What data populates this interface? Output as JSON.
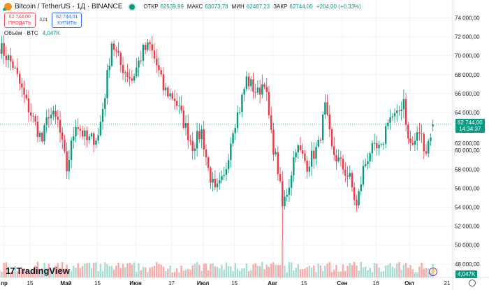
{
  "header": {
    "symbol": "Bitcoin / TetherUS · 1Д · BINANCE",
    "open_label": "ОТКР",
    "open": "62539,99",
    "high_label": "МАКС",
    "high": "63073,78",
    "low_label": "МИН",
    "low": "62487,23",
    "close_label": "ЗАКР",
    "close": "62744,00",
    "change": "+204,00 (+0,33%)"
  },
  "trade": {
    "sell_price": "62 744,00",
    "sell_label": "ПРОДАТЬ",
    "spread": "0,01",
    "buy_price": "62 744,01",
    "buy_label": "КУПИТЬ"
  },
  "volume_legend": {
    "label": "Объём · BTC",
    "value": "4,047K"
  },
  "price_label": {
    "price": "62 744,00",
    "countdown": "14:34:37"
  },
  "volume_label": "4,047K",
  "brand": "TradingView",
  "colors": {
    "up": "#089981",
    "down": "#f23645",
    "vol_up": "#a6dcd2",
    "vol_down": "#f9aaa8"
  },
  "chart_data": {
    "type": "candlestick",
    "title": "Bitcoin / TetherUS · 1Д · BINANCE",
    "ylim": [
      47000,
      75000
    ],
    "y_ticks": [
      "48 000,00",
      "50 000,00",
      "52 000,00",
      "54 000,00",
      "56 000,00",
      "58 000,00",
      "60 000,00",
      "62 000,00",
      "64 000,00",
      "66 000,00",
      "68 000,00",
      "70 000,00",
      "72 000,00",
      "74 000,00"
    ],
    "y_tick_values": [
      48000,
      50000,
      52000,
      54000,
      56000,
      58000,
      60000,
      62000,
      64000,
      66000,
      68000,
      70000,
      72000,
      74000
    ],
    "x_ticks": [
      {
        "label": "пр",
        "day": 0
      },
      {
        "label": "15",
        "day": 14
      },
      {
        "label": "Май",
        "day": 30
      },
      {
        "label": "15",
        "day": 44
      },
      {
        "label": "Июн",
        "day": 61
      },
      {
        "label": "17",
        "day": 77
      },
      {
        "label": "Июл",
        "day": 91
      },
      {
        "label": "15",
        "day": 105
      },
      {
        "label": "Авг",
        "day": 122
      },
      {
        "label": "15",
        "day": 136
      },
      {
        "label": "Сен",
        "day": 153
      },
      {
        "label": "16",
        "day": 168
      },
      {
        "label": "Окт",
        "day": 183
      },
      {
        "label": "21",
        "day": 203
      }
    ],
    "close_anchors": [
      [
        0,
        71000
      ],
      [
        6,
        69000
      ],
      [
        12,
        65000
      ],
      [
        19,
        61000
      ],
      [
        22,
        64000
      ],
      [
        26,
        63000
      ],
      [
        30,
        58000
      ],
      [
        34,
        63000
      ],
      [
        39,
        61000
      ],
      [
        44,
        61500
      ],
      [
        47,
        66000
      ],
      [
        50,
        71500
      ],
      [
        54,
        69000
      ],
      [
        59,
        67500
      ],
      [
        64,
        70500
      ],
      [
        67,
        71000
      ],
      [
        70,
        69000
      ],
      [
        73,
        66500
      ],
      [
        78,
        65500
      ],
      [
        82,
        63000
      ],
      [
        86,
        60500
      ],
      [
        90,
        62000
      ],
      [
        93,
        58000
      ],
      [
        96,
        55500
      ],
      [
        100,
        57000
      ],
      [
        104,
        62500
      ],
      [
        107,
        64500
      ],
      [
        110,
        67500
      ],
      [
        115,
        66000
      ],
      [
        118,
        67500
      ],
      [
        121,
        61500
      ],
      [
        124,
        58000
      ],
      [
        126,
        54000
      ],
      [
        129,
        56500
      ],
      [
        132,
        60500
      ],
      [
        137,
        58500
      ],
      [
        142,
        60500
      ],
      [
        145,
        64500
      ],
      [
        148,
        60000
      ],
      [
        152,
        58500
      ],
      [
        156,
        57000
      ],
      [
        159,
        54000
      ],
      [
        162,
        58000
      ],
      [
        165,
        60000
      ],
      [
        170,
        60000
      ],
      [
        173,
        63500
      ],
      [
        177,
        63500
      ],
      [
        180,
        65500
      ],
      [
        182,
        61000
      ],
      [
        184,
        60500
      ],
      [
        187,
        62000
      ],
      [
        190,
        60000
      ],
      [
        193,
        62744
      ]
    ],
    "volume_spike_day": 126
  }
}
